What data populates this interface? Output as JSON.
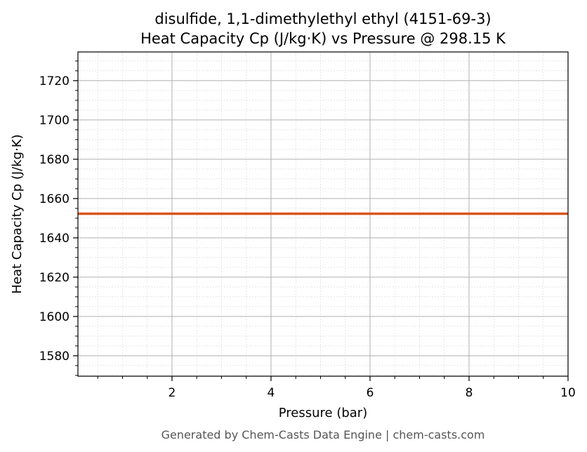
{
  "chart_data": {
    "type": "line",
    "title": "disulfide, 1,1-dimethylethyl ethyl (4151-69-3)",
    "subtitle": "Heat Capacity Cp (J/kg·K) vs Pressure @ 298.15 K",
    "xlabel": "Pressure (bar)",
    "ylabel": "Heat Capacity Cp (J/kg·K)",
    "xlim": [
      0.1,
      10
    ],
    "ylim": [
      1569.6,
      1734.6
    ],
    "xticks": [
      2,
      4,
      6,
      8,
      10
    ],
    "yticks": [
      1580,
      1600,
      1620,
      1640,
      1660,
      1680,
      1700,
      1720
    ],
    "x_minor_step": 0.5,
    "y_minor_step": 5,
    "grid": true,
    "series": [
      {
        "x": [
          0.1,
          10
        ],
        "y": [
          1652.3,
          1652.3
        ],
        "color": "#d9531e"
      }
    ]
  },
  "footer": "Generated by Chem-Casts Data Engine | chem-casts.com"
}
